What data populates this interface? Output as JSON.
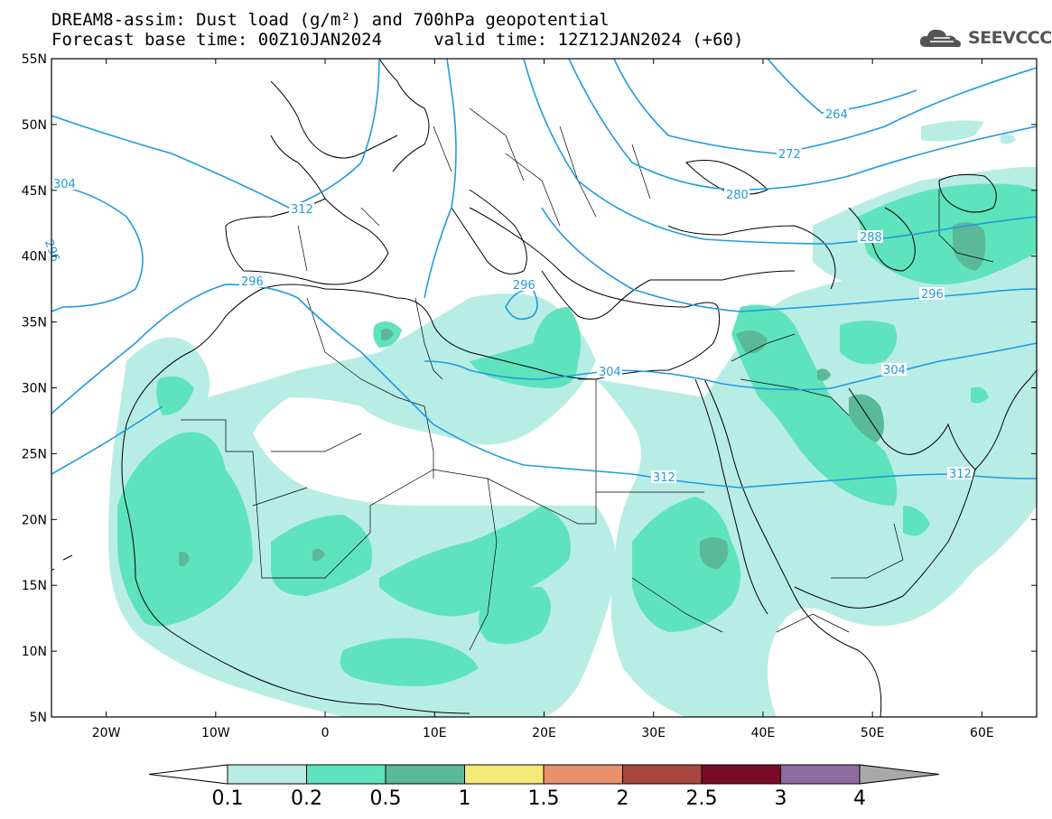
{
  "title": {
    "line1": "DREAM8-assim: Dust load (g/m²) and 700hPa geopotential",
    "line2": "Forecast base time: 00Z10JAN2024     valid time: 12Z12JAN2024 (+60)"
  },
  "logo": {
    "text": "SEEVCCC",
    "icon": "cloud-icon"
  },
  "map": {
    "lon_range": [
      -25,
      65
    ],
    "lat_range": [
      5,
      55
    ],
    "lat_ticks": [
      "55N",
      "50N",
      "45N",
      "40N",
      "35N",
      "30N",
      "25N",
      "20N",
      "15N",
      "10N",
      "5N"
    ],
    "lon_ticks": [
      "20W",
      "10W",
      "0",
      "10E",
      "20E",
      "30E",
      "40E",
      "50E",
      "60E"
    ],
    "contour_color": "#1f9be0",
    "contour_labels": [
      "304",
      "312",
      "296",
      "296",
      "304",
      "312",
      "312",
      "304",
      "296",
      "288",
      "280",
      "272",
      "264",
      "296",
      "304",
      "312"
    ]
  },
  "colorbar": {
    "levels": [
      "0.1",
      "0.2",
      "0.5",
      "1",
      "1.5",
      "2",
      "2.5",
      "3",
      "4"
    ],
    "colors": [
      "#ffffff",
      "#b8ede6",
      "#5fe3bc",
      "#5ab999",
      "#f5e97a",
      "#e8906a",
      "#a8473d",
      "#7a0a2a",
      "#8f6aa0",
      "#a8a8a8"
    ]
  }
}
